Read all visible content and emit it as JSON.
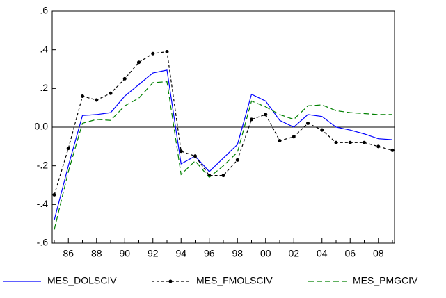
{
  "chart_data": {
    "type": "line",
    "categories": [
      null,
      "86",
      null,
      "88",
      null,
      "90",
      null,
      "92",
      null,
      "94",
      null,
      "96",
      null,
      "98",
      null,
      "00",
      null,
      "02",
      null,
      "04",
      null,
      "06",
      null,
      "08",
      null
    ],
    "ylim": [
      -0.6,
      0.6
    ],
    "yticks": [
      {
        "value": -0.6,
        "label": "-.6"
      },
      {
        "value": -0.4,
        "label": "-.4"
      },
      {
        "value": -0.2,
        "label": "-.2"
      },
      {
        "value": 0,
        "label": "0.0"
      },
      {
        "value": 0.2,
        "label": ".2"
      },
      {
        "value": 0.4,
        "label": ".4"
      },
      {
        "value": 0.6,
        "label": ".6"
      }
    ],
    "zero_line": true,
    "legend": "bottom",
    "series": [
      {
        "name": "MES_DOLSCIV",
        "color": "#0000ff",
        "style": "solid",
        "markers": false,
        "values": [
          -0.48,
          -0.2,
          0.06,
          0.065,
          0.075,
          0.16,
          0.22,
          0.28,
          0.295,
          -0.19,
          -0.15,
          -0.23,
          -0.16,
          -0.09,
          0.17,
          0.135,
          0.035,
          0.0,
          0.065,
          0.055,
          0.0,
          -0.015,
          -0.035,
          -0.06,
          -0.065
        ]
      },
      {
        "name": "MES_FMOLSCIV",
        "color": "#000000",
        "style": "dashed",
        "markers": true,
        "values": [
          -0.35,
          -0.11,
          0.16,
          0.14,
          0.175,
          0.25,
          0.335,
          0.38,
          0.39,
          -0.125,
          -0.15,
          -0.25,
          -0.25,
          -0.17,
          0.04,
          0.065,
          -0.07,
          -0.05,
          0.02,
          -0.015,
          -0.08,
          -0.08,
          -0.08,
          -0.1,
          -0.12
        ]
      },
      {
        "name": "MES_PMGCIV",
        "color": "#008000",
        "style": "dashed",
        "markers": false,
        "values": [
          -0.53,
          -0.23,
          0.02,
          0.04,
          0.035,
          0.11,
          0.15,
          0.23,
          0.235,
          -0.245,
          -0.175,
          -0.26,
          -0.2,
          -0.13,
          0.135,
          0.105,
          0.065,
          0.04,
          0.11,
          0.115,
          0.085,
          0.075,
          0.07,
          0.065,
          0.065
        ]
      }
    ]
  }
}
